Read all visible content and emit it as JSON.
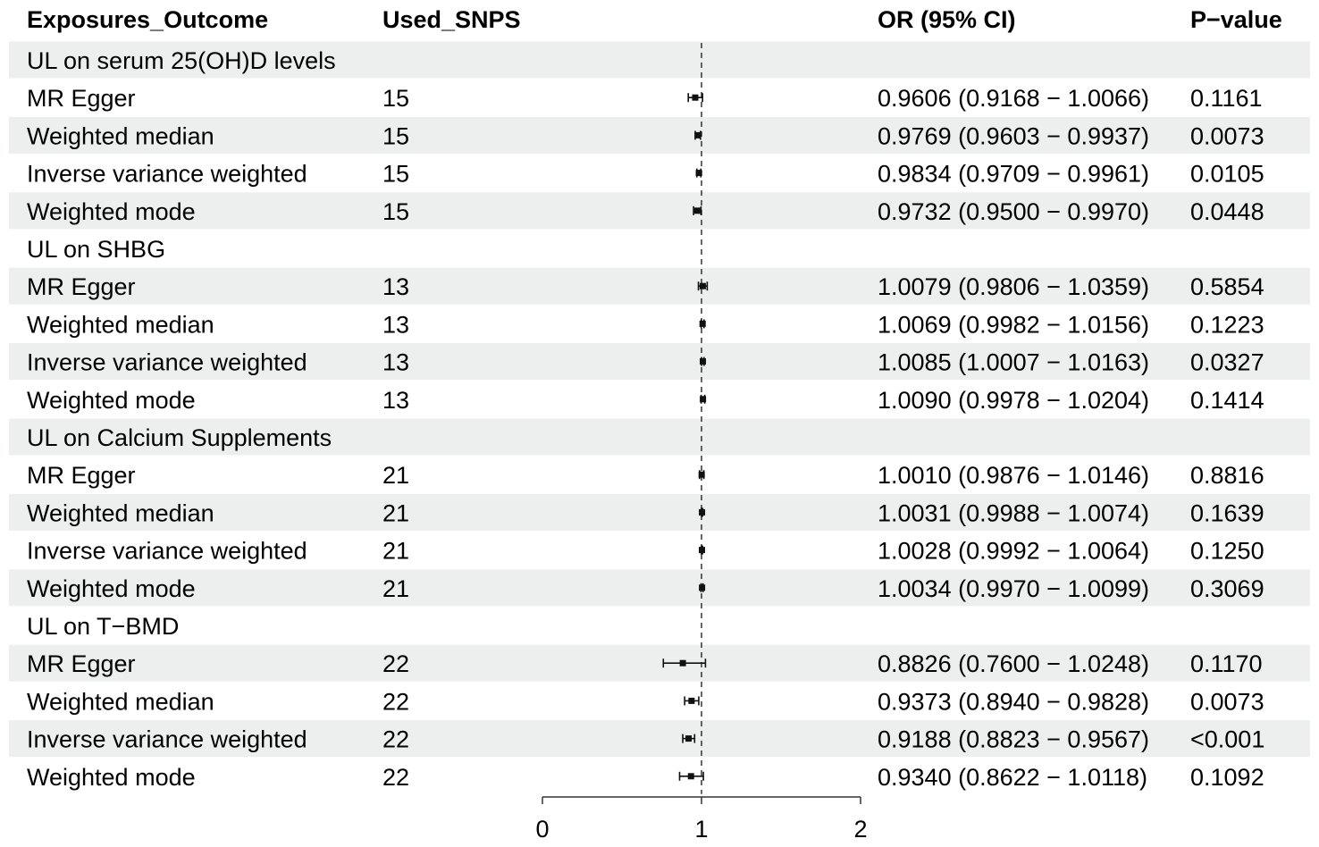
{
  "headers": {
    "exposure": "Exposures_Outcome",
    "snps": "Used_SNPS",
    "or": "OR (95% CI)",
    "p": "P−value"
  },
  "chart_data": {
    "type": "forest",
    "reference_line": 1,
    "xlim": [
      0,
      2
    ],
    "x_ticks": [
      "0",
      "1",
      "2"
    ],
    "row_band_color": "#ECEFEE",
    "rows": [
      {
        "kind": "group",
        "label": "UL on serum 25(OH)D levels"
      },
      {
        "kind": "method",
        "label": "MR Egger",
        "snps": "15",
        "or": 0.9606,
        "lower": 0.9168,
        "upper": 1.0066,
        "or_text": "0.9606 (0.9168 − 1.0066)",
        "p": "0.1161"
      },
      {
        "kind": "method",
        "label": "Weighted median",
        "snps": "15",
        "or": 0.9769,
        "lower": 0.9603,
        "upper": 0.9937,
        "or_text": "0.9769 (0.9603 − 0.9937)",
        "p": "0.0073"
      },
      {
        "kind": "method",
        "label": "Inverse variance weighted",
        "snps": "15",
        "or": 0.9834,
        "lower": 0.9709,
        "upper": 0.9961,
        "or_text": "0.9834 (0.9709 − 0.9961)",
        "p": "0.0105"
      },
      {
        "kind": "method",
        "label": "Weighted mode",
        "snps": "15",
        "or": 0.9732,
        "lower": 0.95,
        "upper": 0.997,
        "or_text": "0.9732 (0.9500 − 0.9970)",
        "p": "0.0448"
      },
      {
        "kind": "group",
        "label": "UL on SHBG"
      },
      {
        "kind": "method",
        "label": "MR Egger",
        "snps": "13",
        "or": 1.0079,
        "lower": 0.9806,
        "upper": 1.0359,
        "or_text": "1.0079 (0.9806 − 1.0359)",
        "p": "0.5854"
      },
      {
        "kind": "method",
        "label": "Weighted median",
        "snps": "13",
        "or": 1.0069,
        "lower": 0.9982,
        "upper": 1.0156,
        "or_text": "1.0069 (0.9982 − 1.0156)",
        "p": "0.1223"
      },
      {
        "kind": "method",
        "label": "Inverse variance weighted",
        "snps": "13",
        "or": 1.0085,
        "lower": 1.0007,
        "upper": 1.0163,
        "or_text": "1.0085 (1.0007 − 1.0163)",
        "p": "0.0327"
      },
      {
        "kind": "method",
        "label": "Weighted mode",
        "snps": "13",
        "or": 1.009,
        "lower": 0.9978,
        "upper": 1.0204,
        "or_text": "1.0090 (0.9978 − 1.0204)",
        "p": "0.1414"
      },
      {
        "kind": "group",
        "label": "UL on Calcium Supplements"
      },
      {
        "kind": "method",
        "label": "MR Egger",
        "snps": "21",
        "or": 1.001,
        "lower": 0.9876,
        "upper": 1.0146,
        "or_text": "1.0010 (0.9876 − 1.0146)",
        "p": "0.8816"
      },
      {
        "kind": "method",
        "label": "Weighted median",
        "snps": "21",
        "or": 1.0031,
        "lower": 0.9988,
        "upper": 1.0074,
        "or_text": "1.0031 (0.9988 − 1.0074)",
        "p": "0.1639"
      },
      {
        "kind": "method",
        "label": "Inverse variance weighted",
        "snps": "21",
        "or": 1.0028,
        "lower": 0.9992,
        "upper": 1.0064,
        "or_text": "1.0028 (0.9992 − 1.0064)",
        "p": "0.1250"
      },
      {
        "kind": "method",
        "label": "Weighted mode",
        "snps": "21",
        "or": 1.0034,
        "lower": 0.997,
        "upper": 1.0099,
        "or_text": "1.0034 (0.9970 − 1.0099)",
        "p": "0.3069"
      },
      {
        "kind": "group",
        "label": "UL on T−BMD"
      },
      {
        "kind": "method",
        "label": "MR Egger",
        "snps": "22",
        "or": 0.8826,
        "lower": 0.76,
        "upper": 1.0248,
        "or_text": "0.8826 (0.7600 − 1.0248)",
        "p": "0.1170"
      },
      {
        "kind": "method",
        "label": "Weighted median",
        "snps": "22",
        "or": 0.9373,
        "lower": 0.894,
        "upper": 0.9828,
        "or_text": "0.9373 (0.8940 − 0.9828)",
        "p": "0.0073"
      },
      {
        "kind": "method",
        "label": "Inverse variance weighted",
        "snps": "22",
        "or": 0.9188,
        "lower": 0.8823,
        "upper": 0.9567,
        "or_text": "0.9188 (0.8823 − 0.9567)",
        "p": "<0.001"
      },
      {
        "kind": "method",
        "label": "Weighted mode",
        "snps": "22",
        "or": 0.934,
        "lower": 0.8622,
        "upper": 1.0118,
        "or_text": "0.9340 (0.8622 − 1.0118)",
        "p": "0.1092"
      }
    ]
  }
}
